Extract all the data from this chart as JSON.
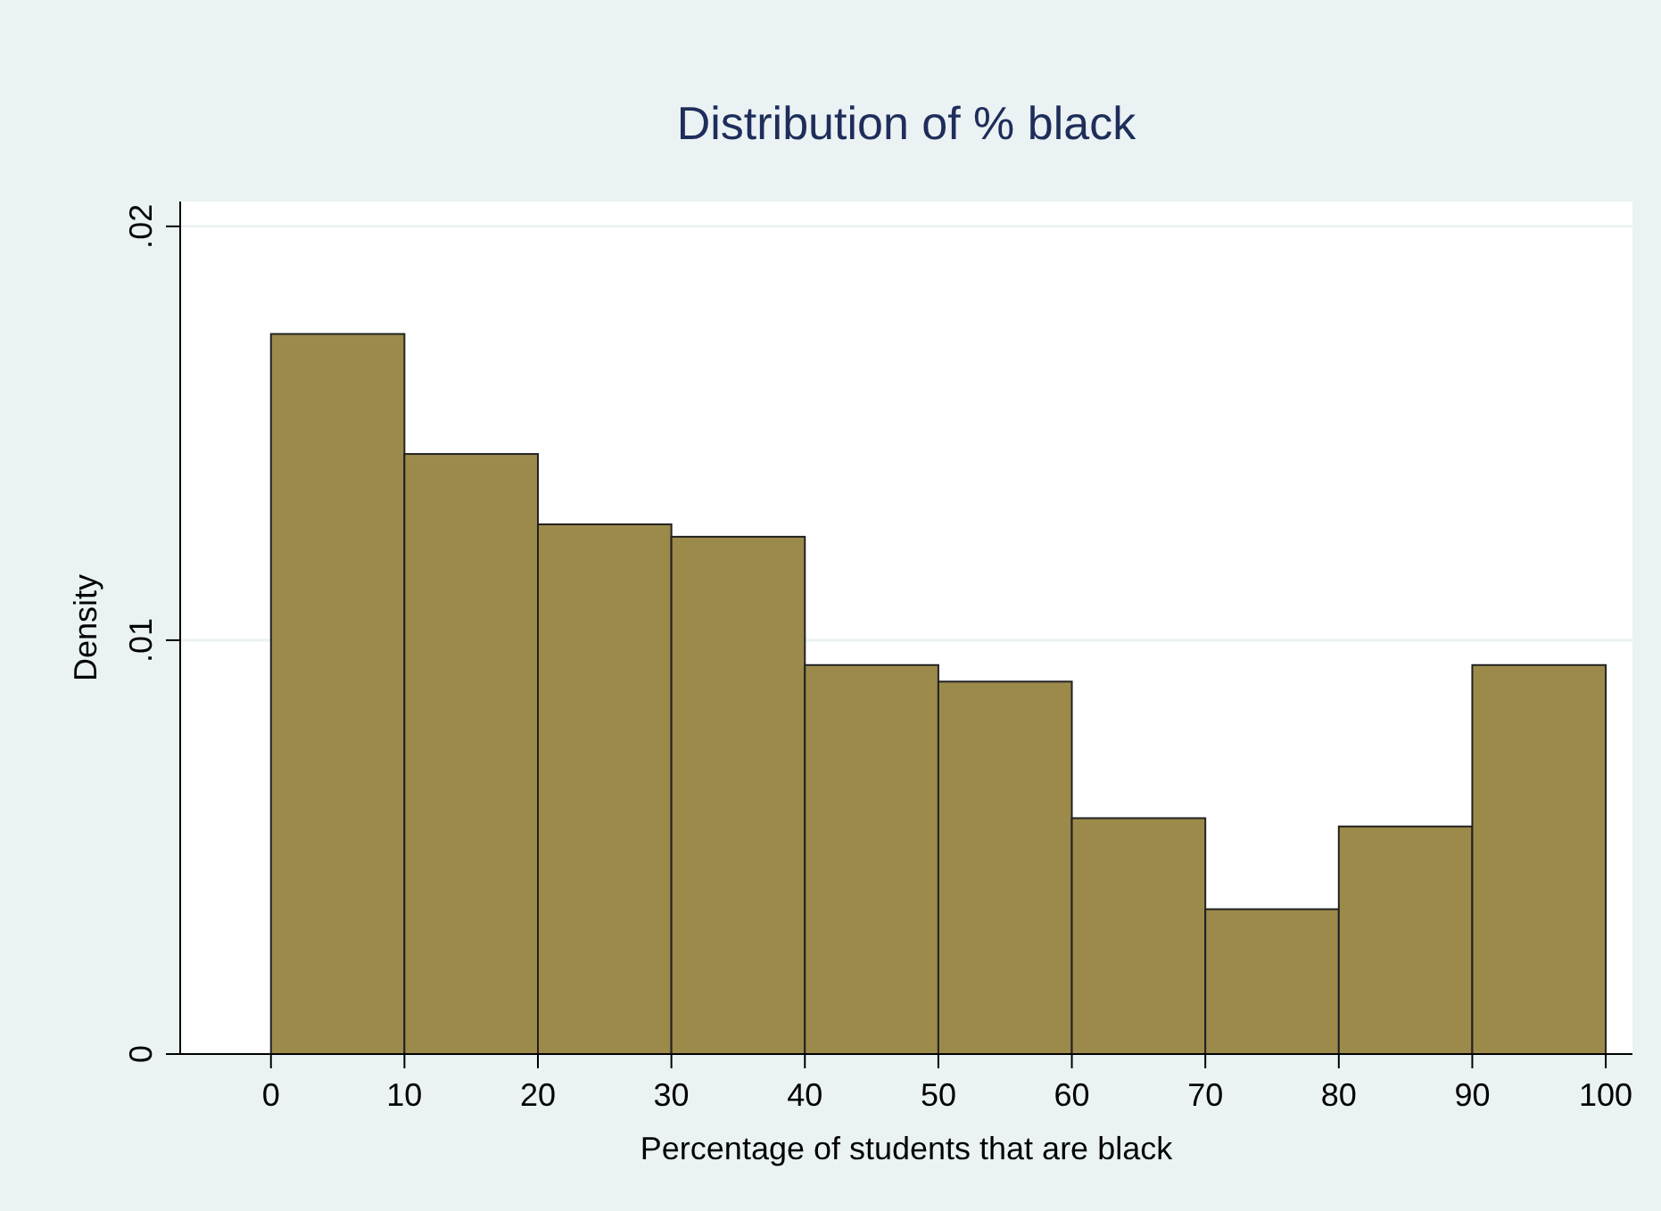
{
  "chart_data": {
    "type": "histogram",
    "title": "Distribution of % black",
    "xlabel": "Percentage of students that are black",
    "ylabel": "Density",
    "bins": [
      0,
      10,
      20,
      30,
      40,
      50,
      60,
      70,
      80,
      90,
      100
    ],
    "values": [
      0.0174,
      0.0145,
      0.0128,
      0.0125,
      0.0094,
      0.009,
      0.0057,
      0.0035,
      0.0055,
      0.0094
    ],
    "color": "#9c8a4b",
    "xlim": [
      -6.8,
      102
    ],
    "xticks": [
      0,
      10,
      20,
      30,
      40,
      50,
      60,
      70,
      80,
      90,
      100
    ],
    "ylim": [
      0,
      0.0206
    ],
    "yticks": [
      {
        "value": 0,
        "label": "0"
      },
      {
        "value": 0.01,
        "label": ".01"
      },
      {
        "value": 0.02,
        "label": ".02"
      }
    ],
    "grid": "y"
  }
}
